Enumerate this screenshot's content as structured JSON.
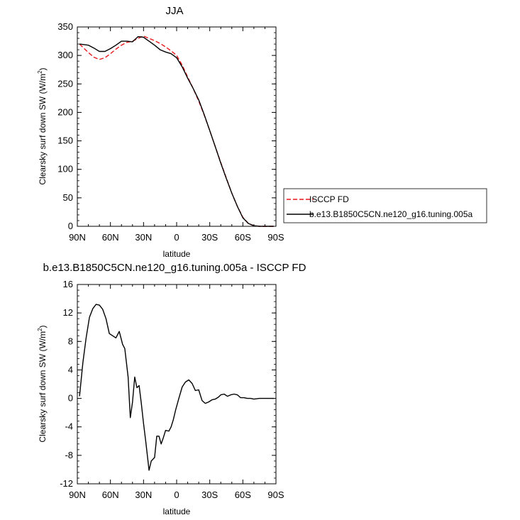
{
  "chart_data": [
    {
      "type": "line",
      "title": "JJA",
      "xlabel": "latitude",
      "ylabel_main": "Clearsky surf down SW (W/m",
      "ylabel_sup": "2",
      "ylabel_end": ")",
      "xlim": [
        90,
        -90
      ],
      "ylim": [
        0,
        350
      ],
      "x_ticks": [
        {
          "value": 90,
          "label": "90N"
        },
        {
          "value": 60,
          "label": "60N"
        },
        {
          "value": 30,
          "label": "30N"
        },
        {
          "value": 0,
          "label": "0"
        },
        {
          "value": -30,
          "label": "30S"
        },
        {
          "value": -60,
          "label": "60S"
        },
        {
          "value": -90,
          "label": "90S"
        }
      ],
      "y_ticks": [
        0,
        50,
        100,
        150,
        200,
        250,
        300,
        350
      ],
      "legend_position": "right",
      "series": [
        {
          "name": "ISCCP FD",
          "color": "#e8161a",
          "dash": "dashed",
          "x": [
            88,
            80,
            75,
            70,
            65,
            60,
            55,
            50,
            45,
            40,
            35,
            30,
            25,
            20,
            15,
            10,
            5,
            0,
            -5,
            -10,
            -15,
            -20,
            -25,
            -30,
            -35,
            -40,
            -45,
            -50,
            -55,
            -60,
            -65,
            -70,
            -75,
            -80,
            -85,
            -88
          ],
          "y": [
            320,
            305,
            297,
            293,
            296,
            303,
            311,
            318,
            323,
            325,
            330,
            334,
            330,
            326,
            321,
            315,
            308,
            300,
            283,
            262,
            242,
            220,
            195,
            168,
            140,
            112,
            85,
            58,
            35,
            16,
            5,
            1,
            0,
            0,
            0,
            0
          ]
        },
        {
          "name": "b.e13.B1850C5CN.ne120_g16.tuning.005a",
          "color": "#000000",
          "dash": "solid",
          "x": [
            88,
            80,
            75,
            70,
            65,
            60,
            55,
            50,
            45,
            40,
            35,
            30,
            25,
            20,
            15,
            10,
            5,
            0,
            -5,
            -10,
            -15,
            -20,
            -25,
            -30,
            -35,
            -40,
            -45,
            -50,
            -55,
            -60,
            -65,
            -70,
            -75,
            -80,
            -85,
            -88
          ],
          "y": [
            320,
            318,
            313,
            307,
            307,
            312,
            318,
            325,
            325,
            324,
            333,
            332,
            325,
            318,
            310,
            306,
            303,
            296,
            280,
            260,
            242,
            222,
            196,
            168,
            140,
            111,
            84,
            58,
            35,
            15,
            5,
            1,
            0,
            0,
            0,
            0
          ]
        }
      ]
    },
    {
      "type": "line",
      "title": "b.e13.B1850C5CN.ne120_g16.tuning.005a - ISCCP FD",
      "xlabel": "latitude",
      "ylabel_main": "Clearsky surf down SW (W/m",
      "ylabel_sup": "2",
      "ylabel_end": ")",
      "xlim": [
        90,
        -90
      ],
      "ylim": [
        -12,
        16
      ],
      "x_ticks": [
        {
          "value": 90,
          "label": "90N"
        },
        {
          "value": 60,
          "label": "60N"
        },
        {
          "value": 30,
          "label": "30N"
        },
        {
          "value": 0,
          "label": "0"
        },
        {
          "value": -30,
          "label": "30S"
        },
        {
          "value": -60,
          "label": "60S"
        },
        {
          "value": -90,
          "label": "90S"
        }
      ],
      "y_ticks": [
        -12,
        -8,
        -4,
        0,
        4,
        8,
        12,
        16
      ],
      "series": [
        {
          "name": "",
          "color": "#000000",
          "dash": "solid",
          "x": [
            88,
            85,
            82,
            79,
            76,
            73,
            70,
            67,
            64,
            61,
            58,
            55,
            52,
            49,
            47,
            44,
            42,
            40,
            38,
            36,
            34,
            32,
            30,
            28,
            25,
            23,
            20,
            18,
            16,
            14,
            12,
            10,
            7,
            5,
            3,
            1,
            -2,
            -5,
            -8,
            -11,
            -14,
            -17,
            -20,
            -23,
            -26,
            -29,
            -32,
            -35,
            -38,
            -40,
            -43,
            -46,
            -49,
            -52,
            -55,
            -58,
            -61,
            -64,
            -67,
            -70,
            -75,
            -80,
            -85,
            -88
          ],
          "y": [
            0.3,
            5,
            8.5,
            11.4,
            12.6,
            13.2,
            13.1,
            12.5,
            11.2,
            9.1,
            8.8,
            8.5,
            9.4,
            7.6,
            7,
            3,
            -2.7,
            -0.5,
            3,
            1.5,
            1.8,
            -0.7,
            -3.5,
            -6,
            -10.1,
            -8.8,
            -8.3,
            -5.3,
            -5.3,
            -6.4,
            -5.5,
            -4.5,
            -4.6,
            -4,
            -3,
            -1.7,
            0,
            1.6,
            2.3,
            2.6,
            2.1,
            1.1,
            1.2,
            -0.3,
            -0.7,
            -0.5,
            -0.2,
            -0.1,
            0.2,
            0.5,
            0.6,
            0.3,
            0.5,
            0.6,
            0.5,
            0.1,
            0.1,
            0,
            0,
            -0.1,
            0,
            0,
            0,
            0
          ]
        }
      ]
    }
  ]
}
